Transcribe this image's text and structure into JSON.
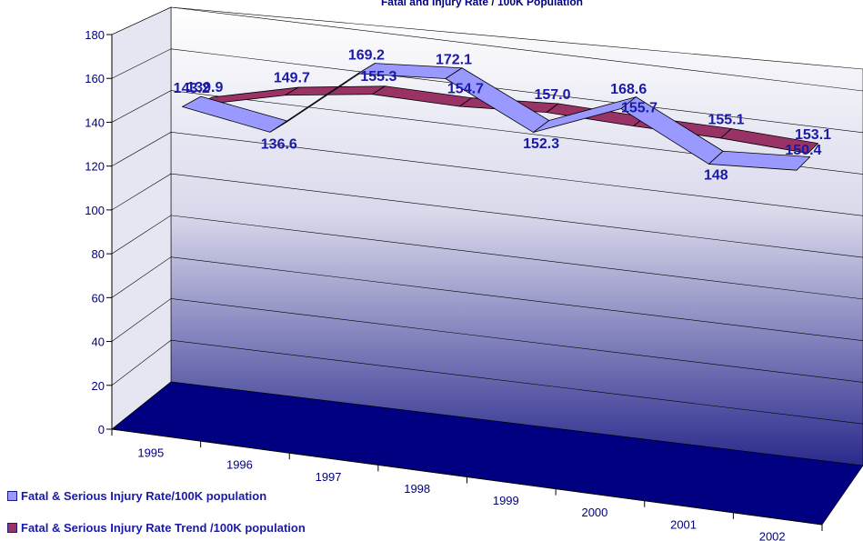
{
  "chart_data": {
    "type": "line",
    "title": "Fatal and Injury Rate / 100K Population",
    "categories": [
      "1995",
      "1996",
      "1997",
      "1998",
      "1999",
      "2000",
      "2001",
      "2002"
    ],
    "ylim": [
      0,
      180
    ],
    "yticks": [
      "0",
      "20",
      "40",
      "60",
      "80",
      "100",
      "120",
      "140",
      "160",
      "180"
    ],
    "grid": true,
    "legend_position": "bottom-left",
    "colors": {
      "series_rate": "#9999ff",
      "series_trend": "#993366",
      "floor": "#000080",
      "labels": "#1a1aa6"
    },
    "series": [
      {
        "name": "Fatal & Serious Injury Rate/100K population",
        "values": [
          143.2,
          136.6,
          169.2,
          172.1,
          152.3,
          168.6,
          148,
          150.4
        ],
        "labels": [
          "143.2",
          "136.6",
          "169.2",
          "172.1",
          "152.3",
          "168.6",
          "148",
          "150.4"
        ]
      },
      {
        "name": "Fatal & Serious Injury Rate Trend /100K population",
        "values": [
          139.9,
          149.7,
          155.3,
          154.7,
          157.0,
          155.7,
          155.1,
          153.1
        ],
        "labels": [
          "139.9",
          "149.7",
          "155.3",
          "154.7",
          "157.0",
          "155.7",
          "155.1",
          "153.1"
        ]
      }
    ]
  },
  "legend": {
    "rate": "Fatal & Serious Injury Rate/100K population",
    "trend": "Fatal & Serious Injury Rate Trend /100K population"
  }
}
